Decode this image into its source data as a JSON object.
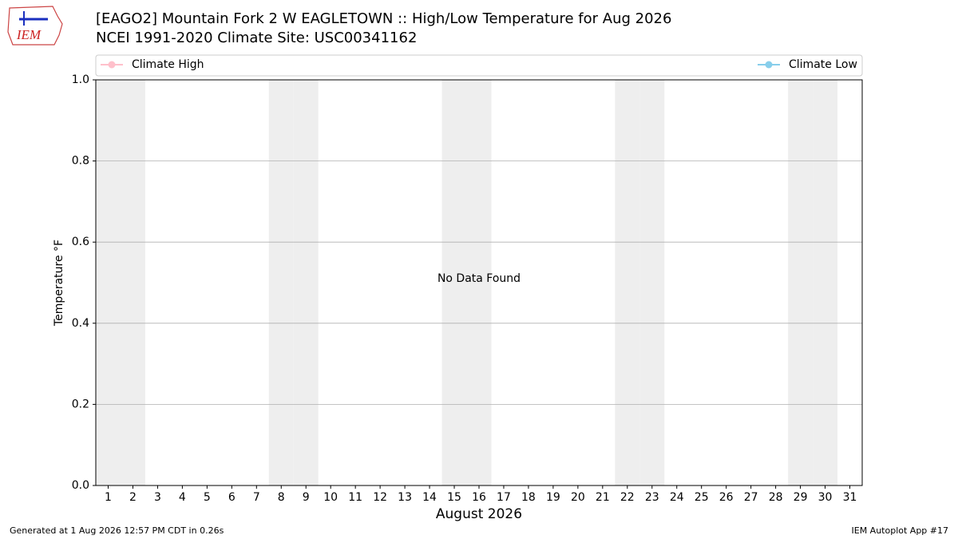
{
  "chart_data": {
    "type": "line",
    "title": "[EAGO2] Mountain Fork 2 W EAGLETOWN :: High/Low Temperature for Aug 2026",
    "subtitle": "NCEI 1991-2020 Climate Site: USC00341162",
    "logo_text": "IEM",
    "xlabel": "August 2026",
    "ylabel": "Temperature °F",
    "annotation": "No Data Found",
    "footer_left": "Generated at 1 Aug 2026 12:57 PM CDT in 0.26s",
    "footer_right": "IEM Autoplot App #17",
    "x": [],
    "series": [
      {
        "name": "Climate High",
        "color": "#ffc0cb",
        "values": []
      },
      {
        "name": "Climate Low",
        "color": "#87ceeb",
        "values": []
      }
    ],
    "shaded_days": [
      1,
      2,
      8,
      9,
      15,
      16,
      22,
      23,
      29,
      30
    ],
    "shade_color": "#eeeeee",
    "xlim": [
      0.5,
      31.5
    ],
    "xticks": [
      1,
      2,
      3,
      4,
      5,
      6,
      7,
      8,
      9,
      10,
      11,
      12,
      13,
      14,
      15,
      16,
      17,
      18,
      19,
      20,
      21,
      22,
      23,
      24,
      25,
      26,
      27,
      28,
      29,
      30,
      31
    ],
    "ylim": [
      0,
      1
    ],
    "yticks": [
      {
        "value": 0,
        "label": "0.0"
      },
      {
        "value": 0.2,
        "label": "0.2"
      },
      {
        "value": 0.4,
        "label": "0.4"
      },
      {
        "value": 0.6,
        "label": "0.6"
      },
      {
        "value": 0.8,
        "label": "0.8"
      },
      {
        "value": 1,
        "label": "1.0"
      }
    ],
    "grid": true,
    "legend": "top"
  }
}
